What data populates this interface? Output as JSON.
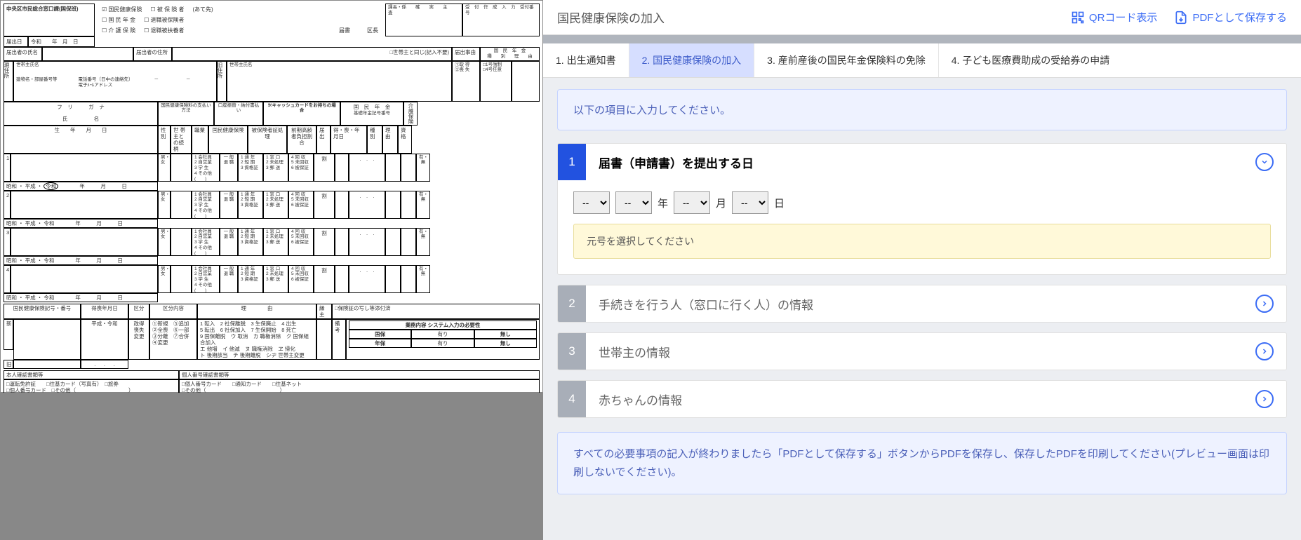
{
  "header": {
    "title": "国民健康保険の加入",
    "qr_label": "QRコード表示",
    "pdf_label": "PDFとして保存する"
  },
  "tabs": [
    {
      "label": "1. 出生通知書",
      "active": false
    },
    {
      "label": "2. 国民健康保険の加入",
      "active": true
    },
    {
      "label": "3. 産前産後の国民年金保険料の免除",
      "active": false
    },
    {
      "label": "4. 子ども医療費助成の受給券の申請",
      "active": false
    }
  ],
  "info_banner": "以下の項目に入力してください。",
  "sections": [
    {
      "num": "1",
      "title": "届書（申請書）を提出する日",
      "active": true,
      "expanded": true
    },
    {
      "num": "2",
      "title": "手続きを行う人（窓口に行く人）の情報",
      "active": false
    },
    {
      "num": "3",
      "title": "世帯主の情報",
      "active": false
    },
    {
      "num": "4",
      "title": "赤ちゃんの情報",
      "active": false
    }
  ],
  "date_input": {
    "placeholder": "--",
    "year_label": "年",
    "month_label": "月",
    "day_label": "日"
  },
  "warning": "元号を選択してください",
  "footer_banner": "すべての必要事項の記入が終わりましたら「PDFとして保存する」ボタンからPDFを保存し、保存したPDFを印刷してください(プレビュー画面は印刷しないでください)。",
  "form": {
    "dept": "中央区市民総合窓口課(国保班)",
    "chk1": "国民健康保険",
    "chk2": "被 保 険 者",
    "chk3": "(あて先)",
    "chk4": "国 民 年 金",
    "chk5": "退職被保険者",
    "chk6": "介 護 保 険",
    "chk7": "退職被扶養者",
    "todokede": "届出日",
    "reiwa": "令和　　年　月　日",
    "name_row": "届出者の氏名",
    "addr_row": "届出者の住所",
    "same_hh": "□世帯主と同じ(記入不要)",
    "kucho": "届書　　　区長",
    "pension_hdr": "国　民　年　金",
    "kaigo": "介護保険",
    "furigana": "フ　リ　　　ガ　ナ",
    "shimei": "氏　　　　　名",
    "paymethod": "国民健康保険料の支払い方法",
    "kouza": "口座振替・納付書払い",
    "cashcard": "※キャッシュカードをお持ちの場合",
    "pension2": "国　民　年　金",
    "kiso": "基礎年金記号番号",
    "sei": "性別",
    "zokugara": "世 帯 主との続柄",
    "shokugyo": "職業",
    "kokuho": "国民健康保険",
    "hihokensha": "被保険者証処理",
    "zenki": "前期高齢者負担割合",
    "todoke": "届出",
    "tokuso": "得・喪・年月日",
    "shubetsu": "種別",
    "riyu": "理由",
    "shikaku": "資格",
    "birth": "生　　年　　月　　日",
    "mf": "男・女",
    "occ_opts": "1 会社員\n2 自営業\n3 学 生\n4 その他\n(　　)",
    "ippan": "一 般\n退 職",
    "col_a": "1 通 年\n2 短 期\n3 資格証",
    "col_b": "1 窓 口\n2 未処理\n3 郵 送",
    "col_c": "4 回 収\n5 未回収\n6 被保証",
    "wari": "割",
    "arunashi": "有・無",
    "era_row": "昭和 ・ 平成 ・ 令和　　　　年　　　月　　　日",
    "kokuho_no": "国民健康保険記号・番号",
    "tokuso_date": "得喪年月日",
    "kubun": "区分",
    "kubun_naiyou": "区分内容",
    "riyu2": "理　　　　由",
    "enshu": "縁主",
    "hokensho_copy": "□保険証の写し等添付済",
    "shin": "新",
    "kyu": "旧",
    "heisei_reiwa": "平成・令和",
    "gov_opts": "政得\n喪失\n変更",
    "kubun_list": "①新規　⑤追加\n②全喪　⑥一部\n③分離　⑦合併\n④変更",
    "riyu_list": "1 転入　2 社保離脱　3 生保廃止　4 出生\n5 転出　6 社保加入　7 生保開始　8 死亡\n9 国保離脱　ウ 取消　カ 職権消除　ク 国保組合加入\n エ 他増　イ 他減　ヌ 職権消除　ヱ 帰化\n ト 後期該当　チ 後期離脱　シヂ 世帯主変更",
    "biko": "備 考",
    "sys_need": "業務内容 システム入力の必要性",
    "kokuho_l": "国保",
    "nenkin_l": "年保",
    "ari": "有り",
    "nashi": "無し",
    "honnin": "本人確認書類等",
    "kojin": "個人番号確認書類等",
    "id_opts": "□運転免許証　　□住基カード（写真有）　□旅券\n□個人番号カード　□その他（　　　　　　　　　　）",
    "id_opts2": "□個人番号カード　　□通知カード　　□住基ネット\n□その他（　　　　　　　　　　　　　　）",
    "top_boxes": "課長・係　　確　　実　　主　　査",
    "top_boxes2": "受　付　作　成　入　力　受付番号",
    "todokede_jiyu": "届出事由",
    "shubetsu2": "種　　別",
    "riyu3": "理　　由",
    "sec_opts": "①取 得\n②喪 失",
    "sec_opts2": "□1号強制\n□4号任意",
    "genjusho": "現住所",
    "kyujusho": "旧住所",
    "setainushi": "世帯主氏名",
    "tatemono": "建物名・部屋番号等",
    "denwa": "電話番号（日中の連絡先）\n電子ﾒｰﾙアドレス",
    "hyphen": "－　　　　　　－"
  }
}
